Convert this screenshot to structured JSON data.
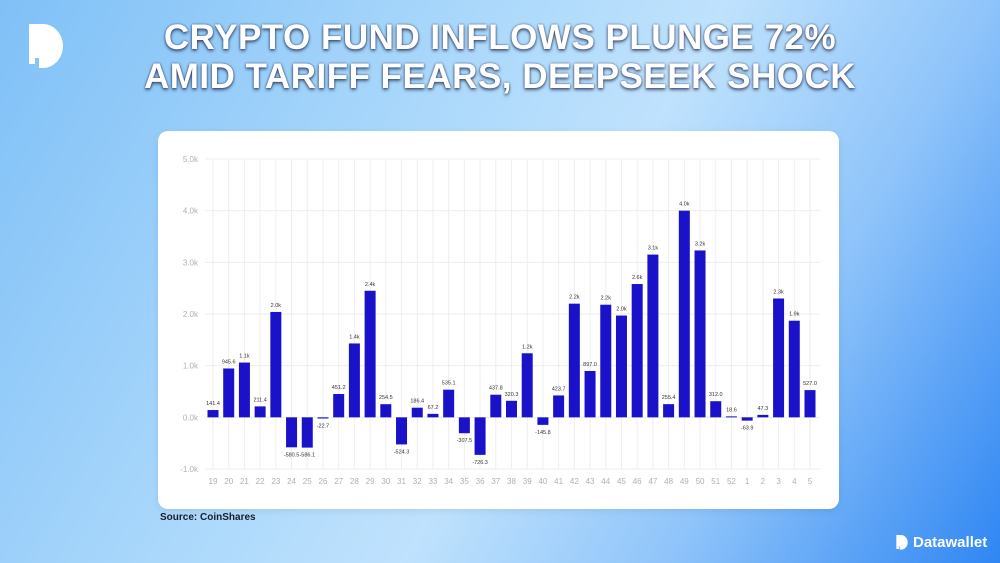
{
  "title": {
    "line1": "CRYPTO FUND INFLOWS PLUNGE 72%",
    "line2": "AMID TARIFF FEARS, DEEPSEEK SHOCK"
  },
  "logo_icon": "datawallet-d-logo-icon",
  "source": "Source: CoinShares",
  "brand": {
    "name": "Datawallet",
    "icon": "datawallet-logo-icon"
  },
  "colors": {
    "bar": "#1a12c8",
    "grid": "#eeeeee",
    "tick": "#b0b0b0"
  },
  "chart_data": {
    "type": "bar",
    "grid": true,
    "ylim": [
      -1000,
      5000
    ],
    "yticks": [
      {
        "value": 5000,
        "label": "5.0k"
      },
      {
        "value": 4000,
        "label": "4.0k"
      },
      {
        "value": 3000,
        "label": "3.0k"
      },
      {
        "value": 2000,
        "label": "2.0k"
      },
      {
        "value": 1000,
        "label": "1.0k"
      },
      {
        "value": 0,
        "label": "0.0k"
      },
      {
        "value": -1000,
        "label": "-1.0k"
      }
    ],
    "categories": [
      "19",
      "20",
      "21",
      "22",
      "23",
      "24",
      "25",
      "26",
      "27",
      "28",
      "29",
      "30",
      "31",
      "32",
      "33",
      "34",
      "35",
      "36",
      "37",
      "38",
      "39",
      "40",
      "41",
      "42",
      "43",
      "44",
      "45",
      "46",
      "47",
      "48",
      "49",
      "50",
      "51",
      "52",
      "1",
      "2",
      "3",
      "4",
      "5"
    ],
    "values": [
      141.4,
      945.6,
      1060,
      211.4,
      2040,
      -580.5,
      -586.1,
      -22.7,
      451.2,
      1430,
      2450,
      254.5,
      -524.3,
      186.4,
      67.2,
      535.1,
      -307.5,
      -726.3,
      437.8,
      320.3,
      1240,
      -145.8,
      423.7,
      2200,
      897.0,
      2180,
      1970,
      2580,
      3150,
      255.4,
      4000,
      3230,
      312.0,
      18.6,
      -63.9,
      47.3,
      2300,
      1870,
      527.0
    ],
    "data_labels": [
      "141.4",
      "945.6",
      "1.1k",
      "211.4",
      "2.0k",
      "-580.5",
      "-586.1",
      "-22.7",
      "451.2",
      "1.4k",
      "2.4k",
      "254.5",
      "-524.3",
      "186.4",
      "67.2",
      "535.1",
      "-307.5",
      "-726.3",
      "437.8",
      "320.3",
      "1.2k",
      "-145.8",
      "423.7",
      "2.2k",
      "897.0",
      "2.2k",
      "2.0k",
      "2.6k",
      "3.1k",
      "255.4",
      "4.0k",
      "3.2k",
      "312.0",
      "18.6",
      "-63.9",
      "47.3",
      "2.3k",
      "1.9k",
      "527.0"
    ]
  }
}
